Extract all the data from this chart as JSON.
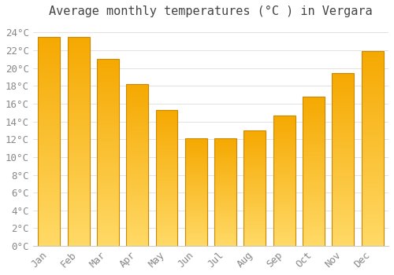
{
  "title": "Average monthly temperatures (°C ) in Vergara",
  "months": [
    "Jan",
    "Feb",
    "Mar",
    "Apr",
    "May",
    "Jun",
    "Jul",
    "Aug",
    "Sep",
    "Oct",
    "Nov",
    "Dec"
  ],
  "values": [
    23.5,
    23.5,
    21.0,
    18.2,
    15.3,
    12.1,
    12.1,
    13.0,
    14.7,
    16.8,
    19.4,
    21.9
  ],
  "bar_color_top": "#F5A800",
  "bar_color_bottom": "#FFD966",
  "bar_edge_color": "#CC8800",
  "background_color": "#FFFFFF",
  "grid_color": "#DDDDDD",
  "ylim": [
    0,
    25
  ],
  "ytick_step": 2,
  "title_fontsize": 11,
  "tick_fontsize": 9,
  "tick_font": "monospace",
  "tick_color": "#888888",
  "title_color": "#444444"
}
